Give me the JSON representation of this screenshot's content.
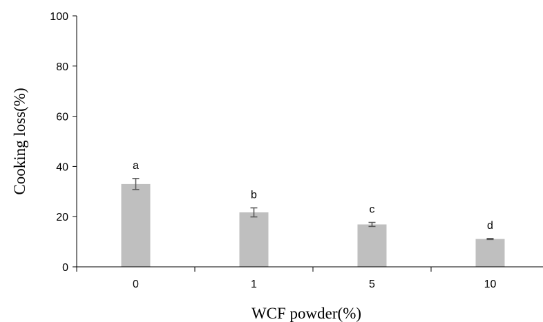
{
  "chart_data": {
    "type": "bar",
    "title": "",
    "xlabel": "WCF powder(%)",
    "ylabel": "Cooking loss(%)",
    "categories": [
      "0",
      "1",
      "5",
      "10"
    ],
    "values": [
      33.0,
      21.7,
      16.9,
      11.1
    ],
    "errors": [
      2.2,
      1.8,
      0.8,
      0.2
    ],
    "significance_labels": [
      "a",
      "b",
      "c",
      "d"
    ],
    "ylim": [
      0,
      100
    ],
    "yticks": [
      "0",
      "20",
      "40",
      "60",
      "80",
      "100"
    ],
    "grid": false,
    "legend": "none",
    "bar_color": "#bfbfbf",
    "error_bar_color": "#595959"
  }
}
